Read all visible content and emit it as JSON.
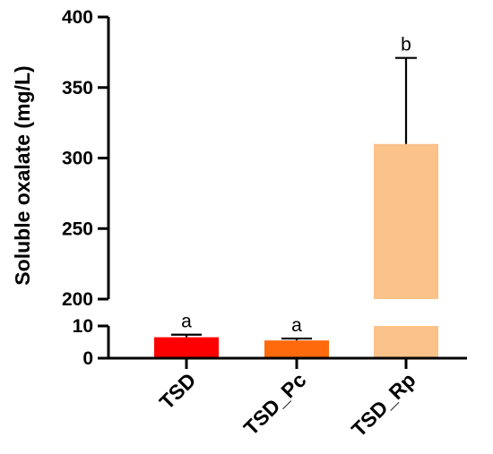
{
  "chart_data": {
    "type": "bar",
    "ylabel": "Soluble oxalate (mg/L)",
    "xlabel": "",
    "categories": [
      "TSD",
      "TSD_Pc",
      "TSD_Rp"
    ],
    "values": [
      6.5,
      5.5,
      310
    ],
    "errors": [
      0.8,
      0.6,
      61
    ],
    "significance": [
      "a",
      "a",
      "b"
    ],
    "colors": [
      "#ff0000",
      "#ff6a0d",
      "#fbc28a"
    ],
    "y_axis_broken": true,
    "y_segments": [
      {
        "range": [
          0,
          10
        ],
        "ticks": [
          0,
          10
        ]
      },
      {
        "range": [
          200,
          400
        ],
        "ticks": [
          200,
          250,
          300,
          350,
          400
        ]
      }
    ],
    "grid": false,
    "legend": "none"
  }
}
